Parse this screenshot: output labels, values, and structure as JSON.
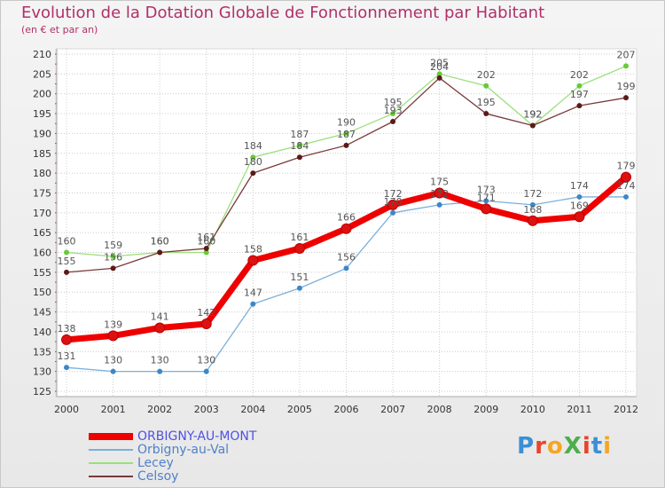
{
  "title": "Evolution de la Dotation Globale de Fonctionnement par Habitant",
  "subtitle": "(en € et par an)",
  "logo": "ProXiti",
  "colors": {
    "grid": "#cccccc",
    "axis_text": "#333333",
    "label_text": "#555555",
    "title": "#b0306a"
  },
  "chart_data": {
    "type": "line",
    "title": "Evolution de la Dotation Globale de Fonctionnement par Habitant",
    "subtitle": "(en € et par an)",
    "xlabel": "",
    "ylabel": "",
    "categories": [
      "2000",
      "2001",
      "2002",
      "2003",
      "2004",
      "2005",
      "2006",
      "2007",
      "2008",
      "2009",
      "2010",
      "2011",
      "2012"
    ],
    "ylim": [
      125,
      210
    ],
    "yticks": [
      125,
      130,
      135,
      140,
      145,
      150,
      155,
      160,
      165,
      170,
      175,
      180,
      185,
      190,
      195,
      200,
      205,
      210
    ],
    "grid": true,
    "legend": "bottom-left",
    "series": [
      {
        "name": "ORBIGNY-AU-MONT",
        "color": "#ee0000",
        "marker": "#dd1111",
        "legend_text_color": "#5050e0",
        "values": [
          138,
          139,
          141,
          142,
          158,
          161,
          166,
          172,
          175,
          171,
          168,
          169,
          179
        ],
        "labels": [
          "138",
          "139",
          "141",
          "142",
          "158",
          "161",
          "166",
          "172",
          "175",
          "171",
          "168",
          "169",
          "179"
        ]
      },
      {
        "name": "Orbigny-au-Val",
        "color": "#7ab0dc",
        "marker": "#3b88c8",
        "legend_text_color": "#5080c8",
        "values": [
          131,
          130,
          130,
          130,
          147,
          151,
          156,
          170,
          172,
          173,
          172,
          174,
          174
        ],
        "labels": [
          "131",
          "130",
          "130",
          "130",
          "147",
          "151",
          "156",
          "170",
          "172",
          "173",
          "172",
          "174",
          "174"
        ]
      },
      {
        "name": "Lecey",
        "color": "#9adf7a",
        "marker": "#66cc33",
        "legend_text_color": "#5080c8",
        "values": [
          160,
          159,
          160,
          160,
          184,
          187,
          190,
          195,
          205,
          202,
          192,
          202,
          207
        ],
        "labels": [
          "160",
          "159",
          "160",
          "160",
          "184",
          "187",
          "190",
          "195",
          "205",
          "202",
          "192",
          "202",
          "207"
        ]
      },
      {
        "name": "Celsoy",
        "color": "#7a3a3a",
        "marker": "#5a1a1a",
        "legend_text_color": "#5080c8",
        "values": [
          155,
          156,
          160,
          161,
          180,
          184,
          187,
          193,
          204,
          195,
          192,
          197,
          199
        ],
        "labels": [
          "155",
          "156",
          "160",
          "161",
          "180",
          "184",
          "187",
          "193",
          "204",
          "195",
          "192",
          "197",
          "199"
        ]
      }
    ]
  }
}
